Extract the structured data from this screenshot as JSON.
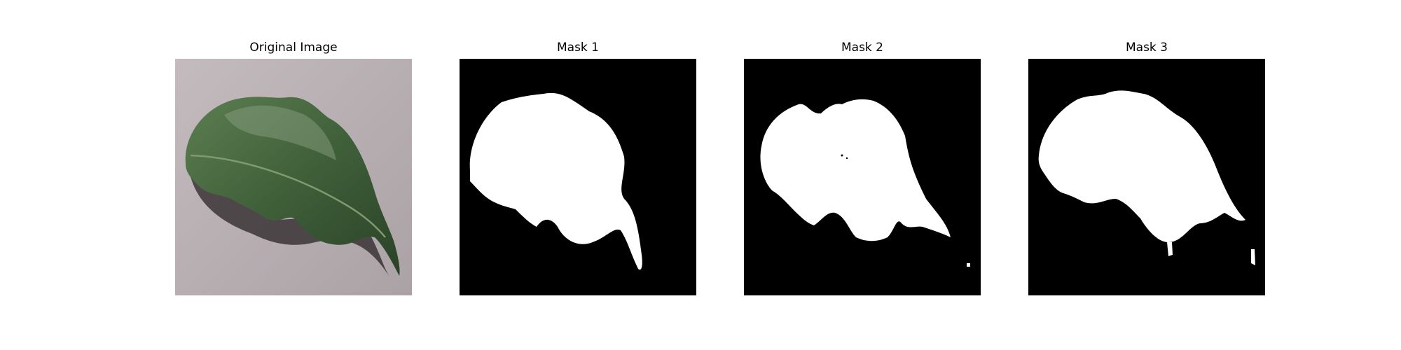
{
  "figure": {
    "panels": [
      {
        "title": "Original Image",
        "kind": "photo",
        "subject": "leaf-photo"
      },
      {
        "title": "Mask 1",
        "kind": "mask"
      },
      {
        "title": "Mask 2",
        "kind": "mask"
      },
      {
        "title": "Mask 3",
        "kind": "mask"
      }
    ]
  },
  "colors": {
    "mask_background": "#000000",
    "mask_foreground": "#ffffff",
    "photo_background": "#b8afb3",
    "leaf_dark": "#2f4a2b",
    "leaf_mid": "#4d6e44",
    "leaf_light": "#8fa585",
    "shadow": "#2a2426"
  }
}
